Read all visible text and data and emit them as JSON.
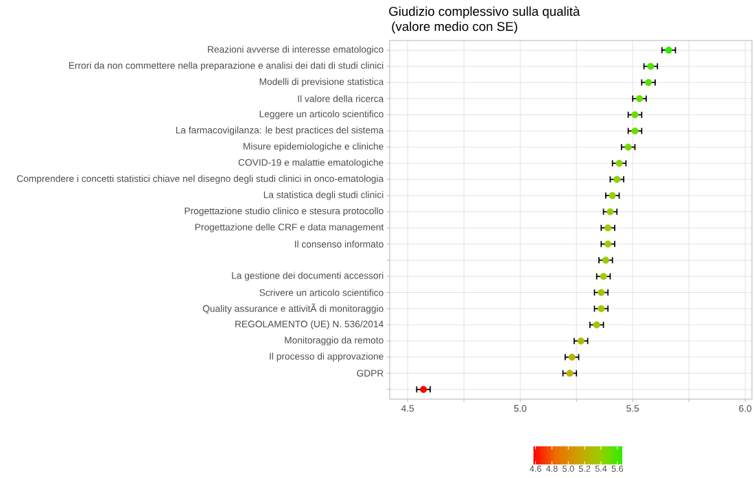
{
  "chart_data": {
    "type": "scatter",
    "orientation": "horizontal",
    "title": "Giudizio complessivo sulla qualità",
    "subtitle": "(valore medio con SE)",
    "categories": [
      "Reazioni avverse di interesse ematologico",
      "Errori da non commettere nella preparazione e analisi dei dati di studi clinici",
      "Modelli di previsione statistica",
      "Il valore della ricerca",
      "Leggere un articolo scientifico",
      "La farmacovigilanza: le best practices del sistema",
      "Misure epidemiologiche e cliniche",
      "COVID-19 e malattie ematologiche",
      "Comprendere i concetti statistici chiave nel disegno degli studi clinici in onco-ematologia",
      "La statistica degli studi clinici",
      "Progettazione studio clinico e stesura protocollo",
      "Progettazione delle CRF e data management",
      "Il consenso informato",
      null,
      "La gestione dei documenti accessori",
      "Scrivere un articolo scientifico",
      "Quality assurance e attivitÃ di monitoraggio",
      "REGOLAMENTO (UE) N. 536/2014",
      "Monitoraggio da remoto",
      "Il processo di approvazione",
      "GDPR",
      null
    ],
    "values": [
      5.66,
      5.58,
      5.57,
      5.53,
      5.51,
      5.51,
      5.48,
      5.44,
      5.43,
      5.41,
      5.4,
      5.39,
      5.39,
      5.38,
      5.37,
      5.36,
      5.36,
      5.34,
      5.27,
      5.23,
      5.22,
      4.57
    ],
    "errors": [
      0.03,
      0.03,
      0.03,
      0.03,
      0.03,
      0.03,
      0.03,
      0.03,
      0.03,
      0.03,
      0.03,
      0.03,
      0.03,
      0.03,
      0.03,
      0.03,
      0.03,
      0.03,
      0.03,
      0.03,
      0.03,
      0.03
    ],
    "cvalues": [
      5.66,
      5.58,
      5.57,
      5.53,
      5.51,
      5.51,
      5.48,
      5.44,
      5.43,
      5.41,
      5.4,
      5.39,
      5.39,
      5.38,
      5.37,
      5.36,
      5.36,
      5.34,
      5.27,
      5.23,
      5.22,
      4.57
    ],
    "clim": [
      4.57,
      5.66
    ],
    "cticks": [
      4.6,
      4.8,
      {
        "value": 5.0,
        "label": "5.0"
      },
      5.2,
      5.4,
      5.6
    ],
    "xlim": [
      4.42,
      6.03
    ],
    "xticks": [
      4.5,
      {
        "value": 4.75,
        "label": null
      },
      {
        "value": 5.0,
        "label": "5.0"
      },
      {
        "value": 5.25,
        "label": null
      },
      5.5,
      {
        "value": 5.75,
        "label": null
      },
      {
        "value": 6.0,
        "label": "6.0"
      }
    ],
    "grid": true,
    "marker": "circle"
  }
}
